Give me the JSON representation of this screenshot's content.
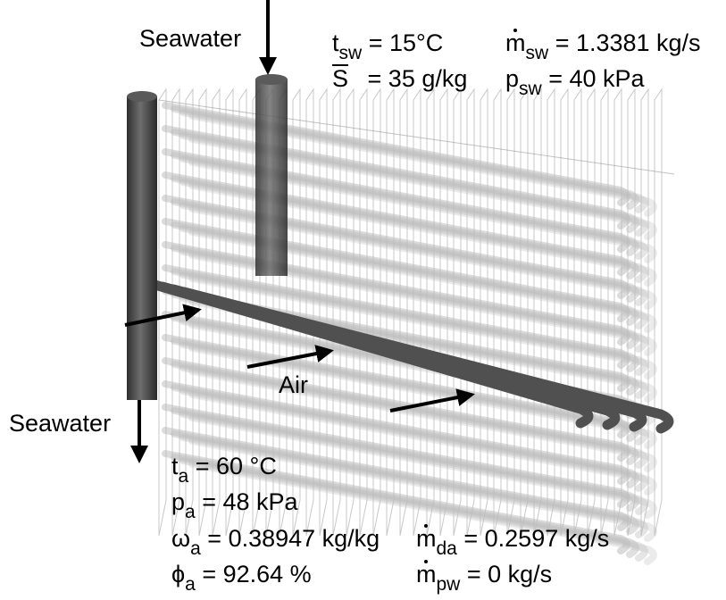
{
  "diagram": {
    "labels": {
      "seawater_in": "Seawater",
      "seawater_out": "Seawater",
      "air": "Air"
    },
    "seawater_conditions": {
      "t_symbol": "t",
      "t_sub": "sw",
      "t_value": "= 15°C",
      "S_symbol": "S",
      "S_value": "= 35 g/kg",
      "m_symbol": "m",
      "m_sub": "sw",
      "m_value": "= 1.3381 kg/s",
      "p_symbol": "p",
      "p_sub": "sw",
      "p_value": "= 40 kPa"
    },
    "air_conditions": {
      "t_symbol": "t",
      "t_sub": "a",
      "t_value": "= 60 °C",
      "p_symbol": "p",
      "p_sub": "a",
      "p_value": "= 48 kPa",
      "omega_symbol": "ω",
      "omega_sub": "a",
      "omega_value": "= 0.38947 kg/kg",
      "phi_symbol": "ϕ",
      "phi_sub": "a",
      "phi_value": "= 92.64 %",
      "mda_symbol": "m",
      "mda_sub": "da",
      "mda_value": "= 0.2597 kg/s",
      "mpw_symbol": "m",
      "mpw_sub": "pw",
      "mpw_value": "= 0 kg/s"
    },
    "colors": {
      "header_pipe": "#4a4a4a",
      "tube_dark": "#505050",
      "tube_light": "#bdbdbd",
      "fin_line": "#9a9a9a",
      "arrow": "#000000"
    }
  }
}
